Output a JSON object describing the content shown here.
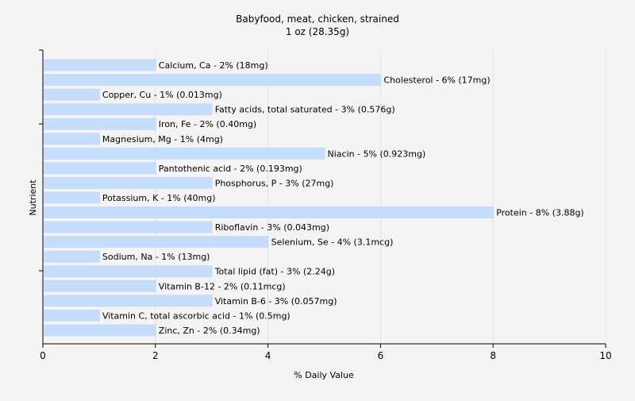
{
  "chart_data": {
    "type": "bar",
    "orientation": "horizontal",
    "title": "Babyfood, meat, chicken, strained",
    "subtitle": "1 oz (28.35g)",
    "xlabel": "% Daily Value",
    "ylabel": "Nutrient",
    "xlim": [
      0,
      10
    ],
    "xticks": [
      0,
      2,
      4,
      6,
      8,
      10
    ],
    "grid": true,
    "bar_color": "#c6dcfb",
    "categories": [
      "Calcium, Ca",
      "Cholesterol",
      "Copper, Cu",
      "Fatty acids, total saturated",
      "Iron, Fe",
      "Magnesium, Mg",
      "Niacin",
      "Pantothenic acid",
      "Phosphorus, P",
      "Potassium, K",
      "Protein",
      "Riboflavin",
      "Selenium, Se",
      "Sodium, Na",
      "Total lipid (fat)",
      "Vitamin B-12",
      "Vitamin B-6",
      "Vitamin C, total ascorbic acid",
      "Zinc, Zn"
    ],
    "values": [
      2,
      6,
      1,
      3,
      2,
      1,
      5,
      2,
      3,
      1,
      8,
      3,
      4,
      1,
      3,
      2,
      3,
      1,
      2
    ],
    "labels": [
      "Calcium, Ca - 2% (18mg)",
      "Cholesterol - 6% (17mg)",
      "Copper, Cu - 1% (0.013mg)",
      "Fatty acids, total saturated - 3% (0.576g)",
      "Iron, Fe - 2% (0.40mg)",
      "Magnesium, Mg - 1% (4mg)",
      "Niacin - 5% (0.923mg)",
      "Pantothenic acid - 2% (0.193mg)",
      "Phosphorus, P - 3% (27mg)",
      "Potassium, K - 1% (40mg)",
      "Protein - 8% (3.88g)",
      "Riboflavin - 3% (0.043mg)",
      "Selenium, Se - 4% (3.1mcg)",
      "Sodium, Na - 1% (13mg)",
      "Total lipid (fat) - 3% (2.24g)",
      "Vitamin B-12 - 2% (0.11mcg)",
      "Vitamin B-6 - 3% (0.057mg)",
      "Vitamin C, total ascorbic acid - 1% (0.5mg)",
      "Zinc, Zn - 2% (0.34mg)"
    ]
  }
}
